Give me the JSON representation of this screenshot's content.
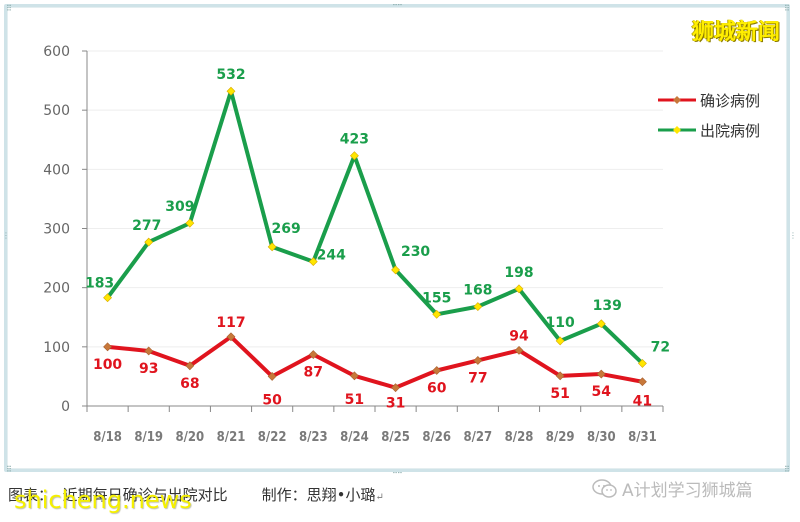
{
  "brand": {
    "title": "狮城新闻"
  },
  "chart_data": {
    "type": "line",
    "title": "",
    "xlabel": "",
    "ylabel": "",
    "ylim": [
      0,
      600
    ],
    "yticks": [
      0,
      100,
      200,
      300,
      400,
      500,
      600
    ],
    "grid": true,
    "legend_position": "right",
    "categories": [
      "8/18",
      "8/19",
      "8/20",
      "8/21",
      "8/22",
      "8/23",
      "8/24",
      "8/25",
      "8/26",
      "8/27",
      "8/28",
      "8/29",
      "8/30",
      "8/31"
    ],
    "series": [
      {
        "name": "确诊病例",
        "color": "#e0141e",
        "marker_color": "#c8783a",
        "values": [
          100,
          93,
          68,
          117,
          50,
          87,
          51,
          31,
          60,
          77,
          94,
          51,
          54,
          41
        ]
      },
      {
        "name": "出院病例",
        "color": "#1a9e4b",
        "marker_color": "#ffe600",
        "values": [
          183,
          277,
          309,
          532,
          269,
          244,
          423,
          230,
          155,
          168,
          198,
          110,
          139,
          72
        ]
      }
    ]
  },
  "legend": {
    "items": [
      {
        "label": "确诊病例",
        "line_color": "#e0141e",
        "marker_color": "#c8783a"
      },
      {
        "label": "出院病例",
        "line_color": "#1a9e4b",
        "marker_color": "#ffe600"
      }
    ]
  },
  "caption": {
    "figure_label": "图表：",
    "figure_title": "近期每日确诊与出院对比",
    "author_label": "制作：",
    "author_name": "思翔•小璐",
    "return_mark": "↵"
  },
  "watermark": {
    "site": "shicheng.news"
  },
  "wechat": {
    "account": "A计划学习狮城篇",
    "icon": "wechat-icon"
  }
}
